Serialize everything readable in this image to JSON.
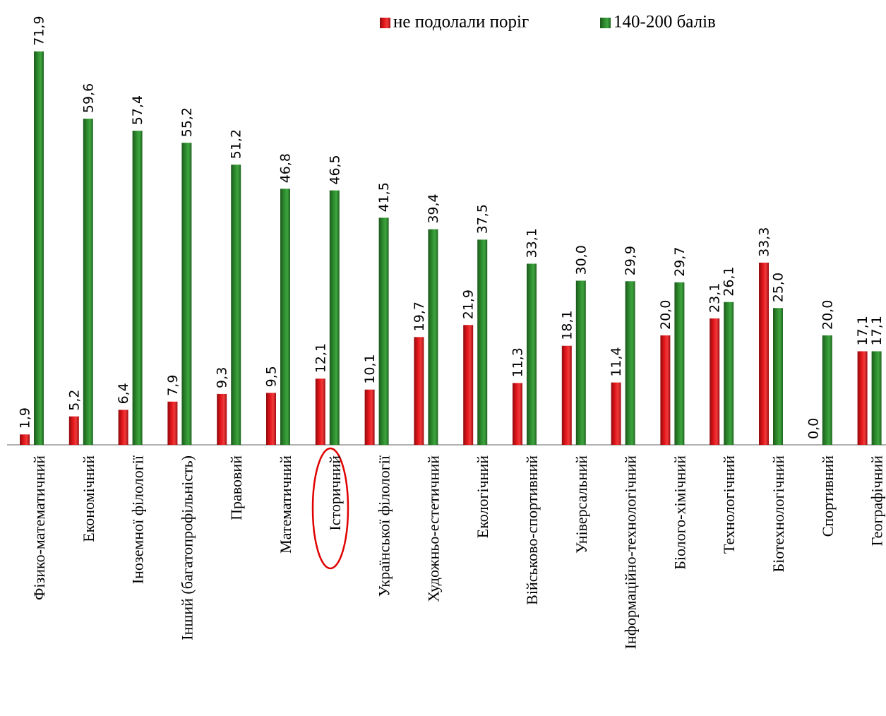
{
  "chart_data": {
    "type": "bar",
    "categories": [
      "Фізико-математичний",
      "Економічний",
      "Іноземної філології",
      "Інший (багатопрофільність)",
      "Правовий",
      "Математичний",
      "Історичний",
      "Української філології",
      "Художньо-естетичний",
      "Екологічний",
      "Військово-спортивний",
      "Універсальний",
      "Інформаційно-технологічний",
      "Біолого-хімічний",
      "Технологічний",
      "Біотехнологічний",
      "Спортивний",
      "Географічний"
    ],
    "series": [
      {
        "name": "не подолали поріг",
        "color": "#e3161b",
        "values": [
          1.9,
          5.2,
          6.4,
          7.9,
          9.3,
          9.5,
          12.1,
          10.1,
          19.7,
          21.9,
          11.3,
          18.1,
          11.4,
          20.0,
          23.1,
          33.3,
          0.0,
          17.1
        ],
        "value_labels": [
          "1,9",
          "5,2",
          "6,4",
          "7,9",
          "9,3",
          "9,5",
          "12,1",
          "10,1",
          "19,7",
          "21,9",
          "11,3",
          "18,1",
          "11,4",
          "20,0",
          "23,1",
          "33,3",
          "0,0",
          "17,1"
        ]
      },
      {
        "name": "140-200 балів",
        "color": "#2e8b2e",
        "values": [
          71.9,
          59.6,
          57.4,
          55.2,
          51.2,
          46.8,
          46.5,
          41.5,
          39.4,
          37.5,
          33.1,
          30.0,
          29.9,
          29.7,
          26.1,
          25.0,
          20.0,
          17.1
        ],
        "value_labels": [
          "71,9",
          "59,6",
          "57,4",
          "55,2",
          "51,2",
          "46,8",
          "46,5",
          "41,5",
          "39,4",
          "37,5",
          "33,1",
          "30,0",
          "29,9",
          "29,7",
          "26,1",
          "25,0",
          "20,0",
          "17,1"
        ]
      }
    ],
    "legend": "top-right"
  }
}
